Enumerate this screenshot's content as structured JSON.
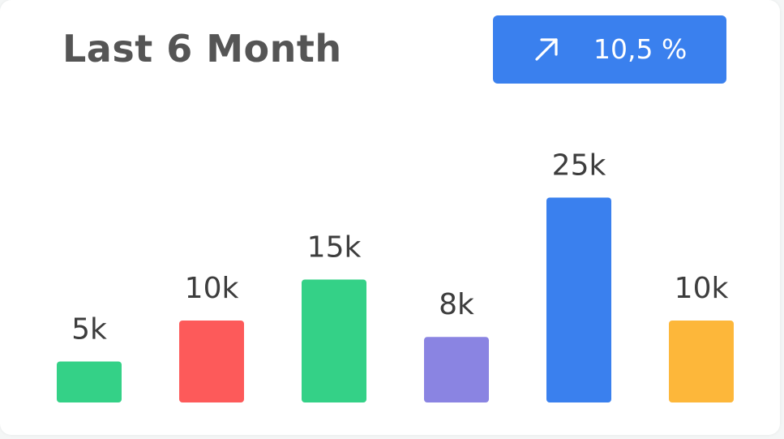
{
  "header": {
    "title": "Last 6 Month"
  },
  "badge": {
    "icon": "arrow-up-right-icon",
    "value": "10,5 %",
    "color": "#3a80ee"
  },
  "chart_data": {
    "type": "bar",
    "categories": [
      "",
      "",
      "",
      "",
      "",
      ""
    ],
    "values": [
      5,
      10,
      15,
      8,
      25,
      10
    ],
    "data_labels": [
      "5k",
      "10k",
      "15k",
      "8k",
      "25k",
      "10k"
    ],
    "colors": [
      "#34d187",
      "#fd5a5a",
      "#34d187",
      "#8a84e2",
      "#3a80ee",
      "#fdb73a"
    ],
    "unit": "k",
    "grid": false,
    "legend": "none",
    "title": "Last 6 Month"
  }
}
